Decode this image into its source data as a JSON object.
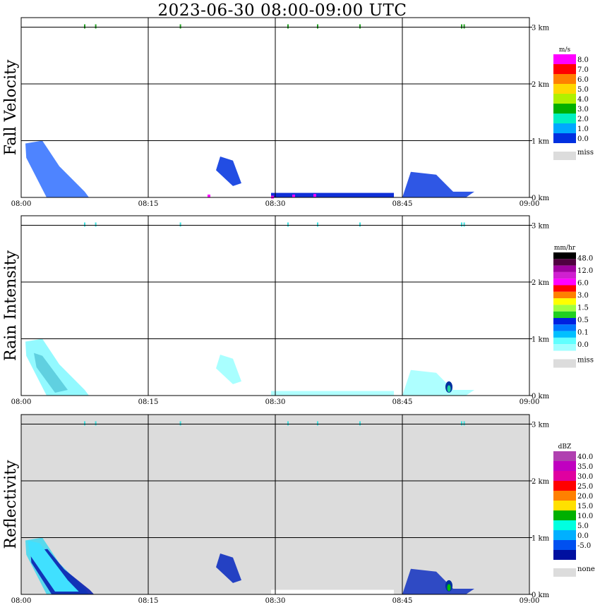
{
  "title": "2023-06-30   08:00-09:00 UTC",
  "chart_data": [
    {
      "type": "heatmap",
      "name": "Fall Velocity",
      "ylabel": "Fall Velocity",
      "x_ticks": [
        "08:00",
        "08:15",
        "08:30",
        "08:45",
        "09:00"
      ],
      "y_ticks": [
        "0 km",
        "1 km",
        "2 km",
        "3 km"
      ],
      "ylim": [
        0,
        3.2
      ],
      "background": "#ffffff",
      "colorbar": {
        "unit": "m/s",
        "labels": [
          "8.0",
          "7.0",
          "6.0",
          "5.0",
          "4.0",
          "3.0",
          "2.0",
          "1.0",
          "0.0"
        ],
        "colors": [
          "#ff00ff",
          "#ff0000",
          "#ff8000",
          "#ffd700",
          "#b0f000",
          "#00b000",
          "#00f0c0",
          "#00a8ff",
          "#0030e0"
        ],
        "miss_label": "miss",
        "miss_color": "#dcdcdc"
      }
    },
    {
      "type": "heatmap",
      "name": "Rain Intensity",
      "ylabel": "Rain Intensity",
      "x_ticks": [
        "08:00",
        "08:15",
        "08:30",
        "08:45",
        "09:00"
      ],
      "y_ticks": [
        "0 km",
        "1 km",
        "2 km",
        "3 km"
      ],
      "ylim": [
        0,
        3.2
      ],
      "background": "#ffffff",
      "colorbar": {
        "unit": "mm/hr",
        "labels": [
          "48.0",
          "12.0",
          "6.0",
          "3.0",
          "1.5",
          "0.5",
          "0.1",
          "0.0"
        ],
        "colors": [
          "#000000",
          "#500040",
          "#a000a0",
          "#d020d0",
          "#ff00ff",
          "#ff0000",
          "#ff8000",
          "#ffff00",
          "#a0ff40",
          "#20d020",
          "#0020e0",
          "#0078ff",
          "#00c0ff",
          "#60ffff",
          "#a0ffff"
        ],
        "miss_label": "miss",
        "miss_color": "#dcdcdc"
      }
    },
    {
      "type": "heatmap",
      "name": "Reflectivity",
      "ylabel": "Reflectivity",
      "x_ticks": [
        "08:00",
        "08:15",
        "08:30",
        "08:45",
        "09:00"
      ],
      "y_ticks": [
        "0 km",
        "1 km",
        "2 km",
        "3 km"
      ],
      "ylim": [
        0,
        3.2
      ],
      "background": "#dcdcdc",
      "colorbar": {
        "unit": "dBZ",
        "labels": [
          "40.0",
          "35.0",
          "30.0",
          "25.0",
          "20.0",
          "15.0",
          "10.0",
          "5.0",
          "0.0",
          "-5.0"
        ],
        "colors": [
          "#b040b0",
          "#c000c0",
          "#e000a0",
          "#ff0000",
          "#ff8000",
          "#ffe000",
          "#00b000",
          "#00ffe0",
          "#00b0ff",
          "#0050f0",
          "#0010a0"
        ],
        "miss_label": "none",
        "miss_color": "#dcdcdc"
      }
    }
  ]
}
